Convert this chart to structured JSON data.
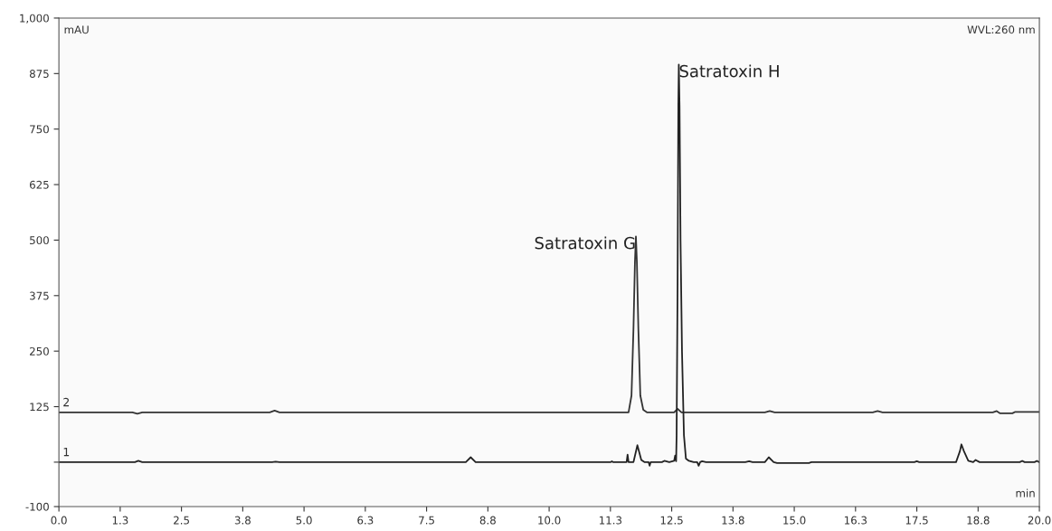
{
  "chart_data": {
    "type": "line",
    "xlabel": "min",
    "ylabel": "mAU",
    "annotations": [
      "WVL:260 nm",
      {
        "text": "Satratoxin G",
        "x": 11.77,
        "y": 508
      },
      {
        "text": "Satratoxin H",
        "x": 12.645,
        "y": 895
      }
    ],
    "xlim": [
      0,
      20
    ],
    "ylim": [
      -100,
      1000
    ],
    "xticks": [
      {
        "value": 0,
        "label": "0.0"
      },
      {
        "value": 1.25,
        "label": "1.3"
      },
      {
        "value": 2.5,
        "label": "2.5"
      },
      {
        "value": 3.75,
        "label": "3.8"
      },
      {
        "value": 5,
        "label": "5.0"
      },
      {
        "value": 6.25,
        "label": "6.3"
      },
      {
        "value": 7.5,
        "label": "7.5"
      },
      {
        "value": 8.75,
        "label": "8.8"
      },
      {
        "value": 10,
        "label": "10.0"
      },
      {
        "value": 11.25,
        "label": "11.3"
      },
      {
        "value": 12.5,
        "label": "12.5"
      },
      {
        "value": 13.75,
        "label": "13.8"
      },
      {
        "value": 15,
        "label": "15.0"
      },
      {
        "value": 16.25,
        "label": "16.3"
      },
      {
        "value": 17.5,
        "label": "17.5"
      },
      {
        "value": 18.75,
        "label": "18.8"
      },
      {
        "value": 20,
        "label": "20.0"
      }
    ],
    "yticks": [
      -100,
      {
        "value": 0,
        "label": null
      },
      125,
      250,
      375,
      500,
      625,
      750,
      875,
      {
        "value": 1000,
        "label": "1,000"
      }
    ],
    "grid": false,
    "legend": false,
    "marker": "none",
    "line_style": "solid",
    "series": [
      {
        "name": "2",
        "color": "#333333",
        "x": [
          0,
          1.5,
          1.6,
          1.7,
          4.3,
          4.4,
          4.5,
          11.62,
          11.68,
          11.72,
          11.75,
          11.77,
          11.79,
          11.82,
          11.86,
          11.92,
          12.0,
          12.55,
          12.62,
          12.7,
          14.4,
          14.5,
          14.6,
          16.6,
          16.7,
          16.8,
          19.05,
          19.13,
          19.2,
          19.45,
          19.5,
          20
        ],
        "values": [
          112,
          112,
          109,
          112,
          112,
          116,
          112,
          112,
          150,
          300,
          450,
          508,
          450,
          300,
          150,
          118,
          112,
          112,
          120,
          112,
          112,
          115,
          112,
          112,
          115,
          112,
          112,
          115,
          110,
          110,
          113,
          113
        ]
      },
      {
        "name": "1",
        "color": "#222222",
        "x": [
          0,
          1.55,
          1.62,
          1.7,
          4.35,
          4.42,
          4.5,
          8.3,
          8.4,
          8.5,
          11.25,
          11.28,
          11.31,
          11.58,
          11.6,
          11.62,
          11.72,
          11.8,
          11.88,
          11.95,
          12.03,
          12.05,
          12.07,
          12.3,
          12.35,
          12.45,
          12.55,
          12.57,
          12.59,
          12.6,
          12.62,
          12.635,
          12.645,
          12.66,
          12.68,
          12.71,
          12.75,
          12.79,
          12.85,
          12.95,
          13.02,
          13.05,
          13.08,
          13.12,
          13.2,
          14.0,
          14.08,
          14.15,
          14.4,
          14.48,
          14.58,
          14.65,
          15.3,
          15.35,
          17.45,
          17.5,
          17.55,
          18.3,
          18.38,
          18.41,
          18.46,
          18.55,
          18.65,
          18.7,
          18.78,
          19.6,
          19.65,
          19.7,
          19.9,
          19.95,
          20
        ],
        "values": [
          0,
          0,
          3,
          0,
          0,
          1,
          0,
          0,
          11,
          0,
          0,
          2,
          0,
          0,
          17,
          0,
          0,
          38,
          5,
          0,
          0,
          -8,
          0,
          0,
          3,
          0,
          3,
          15,
          2,
          60,
          400,
          800,
          895,
          800,
          500,
          250,
          60,
          8,
          3,
          0,
          0,
          -8,
          0,
          2,
          0,
          0,
          2,
          0,
          0,
          11,
          0,
          -2,
          -2,
          0,
          0,
          2,
          0,
          0,
          25,
          40,
          25,
          3,
          0,
          5,
          0,
          0,
          3,
          0,
          0,
          3,
          0
        ]
      }
    ]
  }
}
